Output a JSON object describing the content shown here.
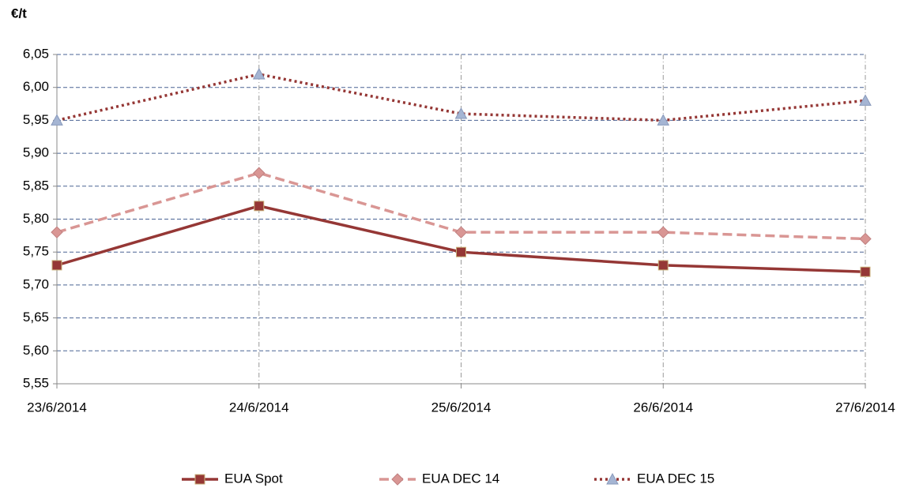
{
  "chart_data": {
    "type": "line",
    "y_label": "€/t",
    "categories": [
      "23/6/2014",
      "24/6/2014",
      "25/6/2014",
      "26/6/2014",
      "27/6/2014"
    ],
    "series": [
      {
        "name": "EUA Spot",
        "color": "#953735",
        "dash": "solid",
        "marker": "square",
        "marker_color": "#953735",
        "values": [
          5.73,
          5.82,
          5.75,
          5.73,
          5.72
        ]
      },
      {
        "name": "EUA DEC 14",
        "color": "#d99694",
        "dash": "dashed",
        "marker": "diamond",
        "marker_color": "#d99694",
        "values": [
          5.78,
          5.87,
          5.78,
          5.78,
          5.77
        ]
      },
      {
        "name": "EUA DEC 15",
        "color": "#953735",
        "dash": "dotted",
        "marker": "triangle",
        "marker_color": "#a5b5d3",
        "values": [
          5.95,
          6.02,
          5.96,
          5.95,
          5.98
        ]
      }
    ],
    "ylim": [
      5.55,
      6.05
    ],
    "yticks": [
      {
        "value": 5.55,
        "label": "5,55"
      },
      {
        "value": 5.6,
        "label": "5,60"
      },
      {
        "value": 5.65,
        "label": "5,65"
      },
      {
        "value": 5.7,
        "label": "5,70"
      },
      {
        "value": 5.75,
        "label": "5,75"
      },
      {
        "value": 5.8,
        "label": "5,80"
      },
      {
        "value": 5.85,
        "label": "5,85"
      },
      {
        "value": 5.9,
        "label": "5,90"
      },
      {
        "value": 5.95,
        "label": "5,95"
      },
      {
        "value": 6.0,
        "label": "6,00"
      },
      {
        "value": 6.05,
        "label": "6,05"
      }
    ],
    "grid": true,
    "legend": "bottom"
  }
}
